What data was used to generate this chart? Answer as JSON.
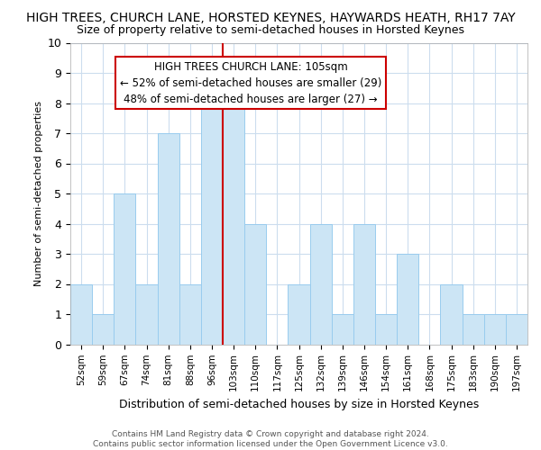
{
  "title": "HIGH TREES, CHURCH LANE, HORSTED KEYNES, HAYWARDS HEATH, RH17 7AY",
  "subtitle": "Size of property relative to semi-detached houses in Horsted Keynes",
  "xlabel": "Distribution of semi-detached houses by size in Horsted Keynes",
  "ylabel": "Number of semi-detached properties",
  "categories": [
    "52sqm",
    "59sqm",
    "67sqm",
    "74sqm",
    "81sqm",
    "88sqm",
    "96sqm",
    "103sqm",
    "110sqm",
    "117sqm",
    "125sqm",
    "132sqm",
    "139sqm",
    "146sqm",
    "154sqm",
    "161sqm",
    "168sqm",
    "175sqm",
    "183sqm",
    "190sqm",
    "197sqm"
  ],
  "values": [
    2,
    1,
    5,
    2,
    7,
    2,
    8,
    8,
    4,
    0,
    2,
    4,
    1,
    4,
    1,
    3,
    0,
    2,
    1,
    1,
    1
  ],
  "bar_color": "#cce5f5",
  "bar_edge_color": "#99ccee",
  "ref_line_index": 7,
  "ref_line_color": "#cc0000",
  "annotation_text": "HIGH TREES CHURCH LANE: 105sqm\n← 52% of semi-detached houses are smaller (29)\n48% of semi-detached houses are larger (27) →",
  "annotation_box_edgecolor": "#cc0000",
  "footer": "Contains HM Land Registry data © Crown copyright and database right 2024.\nContains public sector information licensed under the Open Government Licence v3.0.",
  "ylim": [
    0,
    10
  ],
  "yticks": [
    0,
    1,
    2,
    3,
    4,
    5,
    6,
    7,
    8,
    9,
    10
  ],
  "grid_color": "#ccddee",
  "background_color": "#ffffff",
  "title_fontsize": 10,
  "subtitle_fontsize": 9
}
